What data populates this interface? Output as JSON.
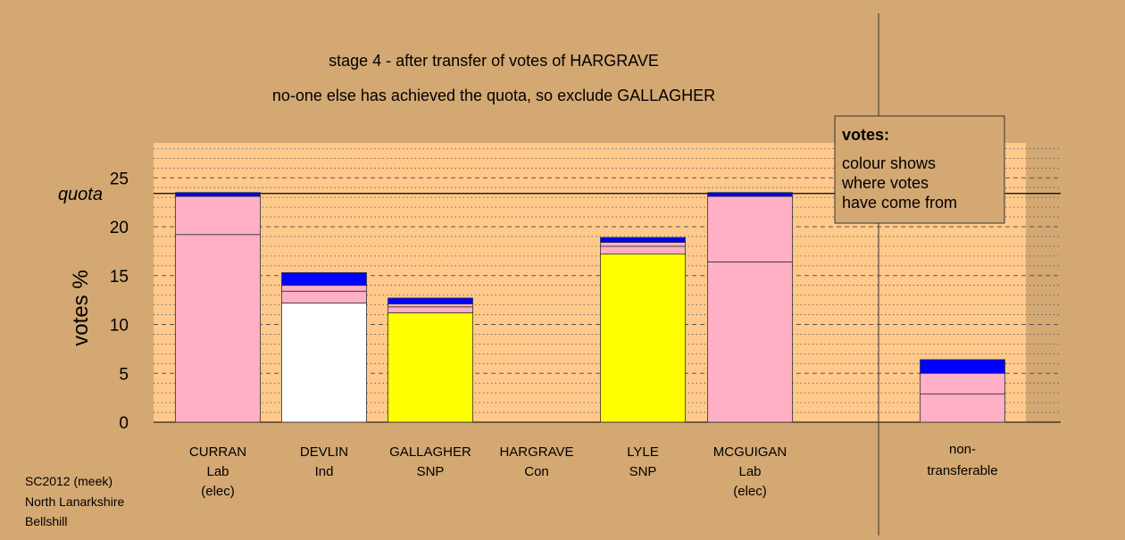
{
  "title": "stage 4 - after transfer of votes of HARGRAVE",
  "subtitle": "no-one else has achieved the quota, so exclude GALLAGHER",
  "ylabel": "votes %",
  "quota_label": "quota",
  "legend": {
    "heading": "votes:",
    "lines": [
      "colour shows",
      "where votes",
      "have come from"
    ]
  },
  "footer": [
    "SC2012 (meek)",
    "North Lanarkshire",
    "Bellshill"
  ],
  "colors": {
    "background": "#d4a872",
    "plot_background": "#ffc98c",
    "Lab": "#ffb0c4",
    "Ind": "#ffffff",
    "SNP": "#ffff00",
    "Con": "#0000ff"
  },
  "chart_data": {
    "type": "bar",
    "stacked": true,
    "ylim": [
      0,
      28.5
    ],
    "yticks": [
      0,
      5,
      10,
      15,
      20,
      25
    ],
    "quota": 23.4,
    "grid": "horizontal dashed at major ticks, dotted at minor ticks",
    "bars": [
      {
        "name": "CURRAN",
        "party": "Lab",
        "status": "(elec)",
        "segments": [
          {
            "from": "Lab",
            "value": 19.2
          },
          {
            "from": "Lab",
            "value": 3.9
          },
          {
            "from": "Con",
            "value": 0.4
          }
        ]
      },
      {
        "name": "DEVLIN",
        "party": "Ind",
        "status": "",
        "segments": [
          {
            "from": "Ind",
            "value": 12.2
          },
          {
            "from": "Lab",
            "value": 1.2
          },
          {
            "from": "Lab",
            "value": 0.6
          },
          {
            "from": "Con",
            "value": 1.3
          }
        ]
      },
      {
        "name": "GALLAGHER",
        "party": "SNP",
        "status": "",
        "segments": [
          {
            "from": "SNP",
            "value": 11.2
          },
          {
            "from": "Lab",
            "value": 0.6
          },
          {
            "from": "Lab",
            "value": 0.3
          },
          {
            "from": "Con",
            "value": 0.6
          }
        ]
      },
      {
        "name": "HARGRAVE",
        "party": "Con",
        "status": "",
        "segments": []
      },
      {
        "name": "LYLE",
        "party": "SNP",
        "status": "",
        "segments": [
          {
            "from": "SNP",
            "value": 17.2
          },
          {
            "from": "Lab",
            "value": 0.8
          },
          {
            "from": "Lab",
            "value": 0.4
          },
          {
            "from": "Con",
            "value": 0.5
          }
        ]
      },
      {
        "name": "MCGUIGAN",
        "party": "Lab",
        "status": "(elec)",
        "segments": [
          {
            "from": "Lab",
            "value": 16.4
          },
          {
            "from": "Lab",
            "value": 6.7
          },
          {
            "from": "Con",
            "value": 0.4
          }
        ]
      }
    ],
    "nontransferable": {
      "label": [
        "non-",
        "transferable"
      ],
      "segments": [
        {
          "from": "Lab",
          "value": 2.9
        },
        {
          "from": "Lab",
          "value": 2.1
        },
        {
          "from": "Con",
          "value": 1.4
        }
      ]
    }
  }
}
